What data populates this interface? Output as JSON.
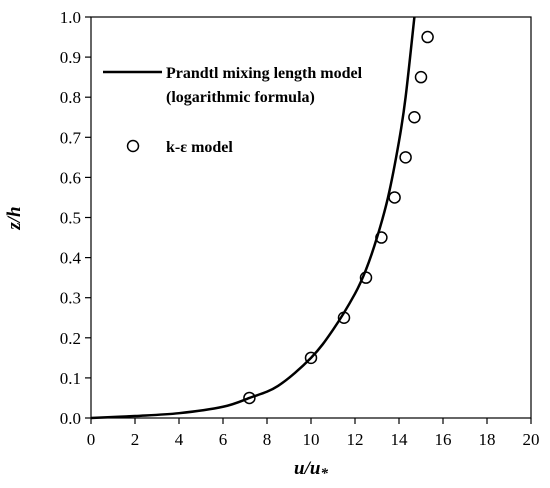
{
  "chart_data": {
    "type": "line",
    "xlim": [
      0,
      20
    ],
    "ylim": [
      0,
      1.0
    ],
    "xticks": [
      "0",
      "2",
      "4",
      "6",
      "8",
      "10",
      "12",
      "14",
      "16",
      "18",
      "20"
    ],
    "yticks": [
      "0.0",
      "0.1",
      "0.2",
      "0.3",
      "0.4",
      "0.5",
      "0.6",
      "0.7",
      "0.8",
      "0.9",
      "1.0"
    ],
    "xlabel_main": "u/u",
    "xlabel_sub": "*",
    "ylabel": "z/h",
    "grid": false,
    "legend_position": "top-left",
    "series": [
      {
        "name": "Prandtl mixing length model",
        "name_line2": "(logarithmic formula)",
        "style": "line",
        "color": "#000000",
        "x": [
          0.0,
          2.0,
          4.0,
          6.0,
          7.2,
          8.5,
          10.0,
          11.0,
          12.0,
          12.5,
          13.0,
          13.5,
          14.0,
          14.3,
          14.7
        ],
        "y": [
          0.0,
          0.005,
          0.012,
          0.028,
          0.05,
          0.08,
          0.15,
          0.22,
          0.31,
          0.37,
          0.45,
          0.55,
          0.69,
          0.8,
          1.0
        ]
      },
      {
        "name": "k-ε model",
        "style": "marker",
        "marker": "open-circle",
        "color": "#000000",
        "x": [
          7.2,
          10.0,
          11.5,
          12.5,
          13.2,
          13.8,
          14.3,
          14.7,
          15.0,
          15.3
        ],
        "y": [
          0.05,
          0.15,
          0.25,
          0.35,
          0.45,
          0.55,
          0.65,
          0.75,
          0.85,
          0.95
        ]
      }
    ]
  }
}
